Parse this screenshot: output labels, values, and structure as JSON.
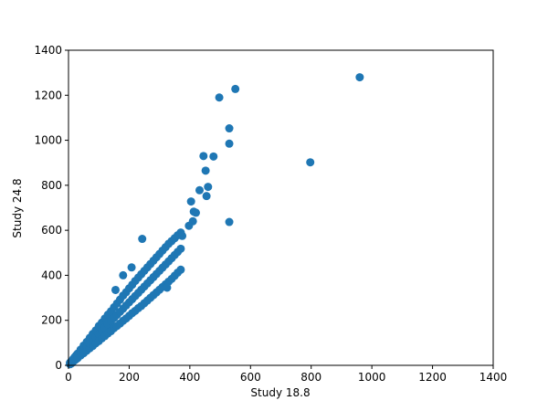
{
  "chart_data": {
    "type": "scatter",
    "xlabel": "Study 18.8",
    "ylabel": "Study 24.8",
    "color": "#1f77b4",
    "xlim": [
      0,
      1400
    ],
    "ylim": [
      0,
      1400
    ],
    "xticks": [
      0,
      200,
      400,
      600,
      800,
      1000,
      1200,
      1400
    ],
    "yticks": [
      0,
      200,
      400,
      600,
      800,
      1000,
      1200,
      1400
    ],
    "x": [
      5,
      5,
      5,
      10,
      10,
      10,
      15,
      15,
      15,
      20,
      20,
      20,
      25,
      25,
      25,
      30,
      30,
      30,
      40,
      40,
      40,
      50,
      50,
      50,
      60,
      60,
      60,
      70,
      70,
      70,
      80,
      80,
      80,
      90,
      90,
      90,
      100,
      100,
      100,
      110,
      110,
      110,
      120,
      120,
      120,
      130,
      130,
      130,
      140,
      140,
      140,
      150,
      150,
      150,
      160,
      160,
      160,
      170,
      170,
      170,
      180,
      180,
      180,
      190,
      190,
      190,
      200,
      200,
      200,
      210,
      210,
      210,
      220,
      220,
      220,
      230,
      230,
      230,
      240,
      240,
      240,
      250,
      250,
      250,
      260,
      260,
      260,
      270,
      270,
      270,
      280,
      280,
      280,
      290,
      290,
      290,
      300,
      300,
      300,
      310,
      310,
      310,
      320,
      320,
      320,
      330,
      330,
      330,
      340,
      340,
      340,
      350,
      350,
      350,
      360,
      360,
      360,
      370,
      370,
      370,
      155,
      208,
      180,
      375,
      960,
      550,
      497,
      530,
      530,
      445,
      478,
      452,
      797,
      460,
      432,
      455,
      404,
      413,
      420,
      410,
      397,
      530,
      243,
      325
    ],
    "values": [
      5,
      8,
      12,
      9,
      14,
      19,
      16,
      21,
      27,
      22,
      28,
      36,
      27,
      35,
      44,
      32,
      42,
      52,
      44,
      56,
      70,
      54,
      70,
      88,
      65,
      84,
      104,
      76,
      98,
      122,
      86,
      112,
      140,
      98,
      126,
      155,
      108,
      140,
      175,
      120,
      154,
      190,
      130,
      168,
      208,
      142,
      182,
      225,
      152,
      196,
      240,
      165,
      210,
      258,
      175,
      224,
      275,
      186,
      238,
      292,
      198,
      252,
      310,
      208,
      266,
      325,
      220,
      280,
      342,
      232,
      294,
      358,
      242,
      308,
      375,
      254,
      322,
      390,
      264,
      336,
      405,
      276,
      350,
      420,
      288,
      364,
      435,
      300,
      378,
      450,
      312,
      392,
      465,
      324,
      406,
      480,
      336,
      420,
      495,
      348,
      434,
      510,
      360,
      448,
      525,
      372,
      462,
      540,
      384,
      476,
      552,
      398,
      490,
      565,
      412,
      504,
      578,
      425,
      518,
      590,
      335,
      435,
      400,
      575,
      1280,
      1228,
      1190,
      1053,
      985,
      930,
      928,
      865,
      902,
      793,
      778,
      752,
      728,
      683,
      678,
      640,
      620,
      637,
      562,
      345
    ]
  }
}
